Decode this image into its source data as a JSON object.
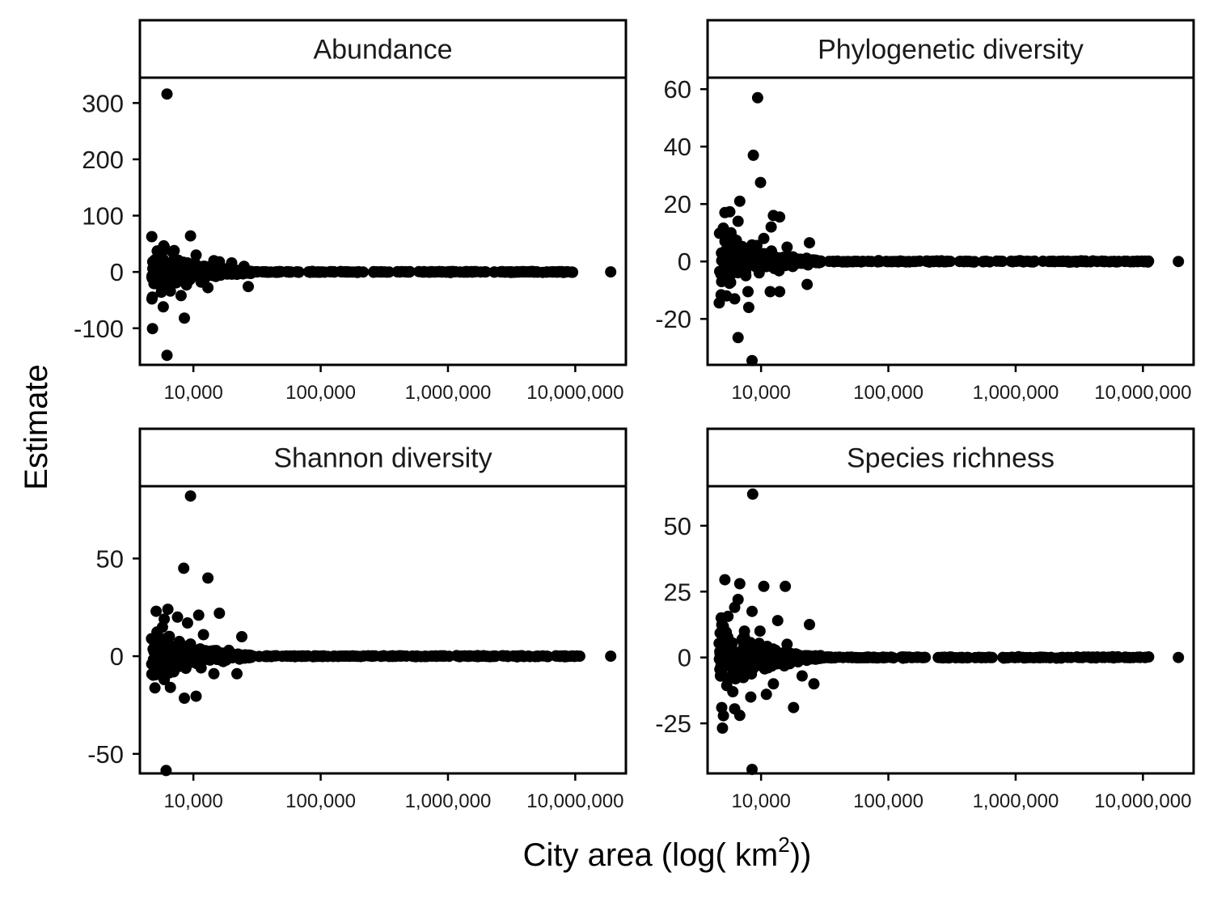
{
  "figure": {
    "xlabel": "City area (log( km",
    "xlabel_sup": "2",
    "xlabel_end": "))",
    "ylabel": "Estimate"
  },
  "chart_data": [
    {
      "type": "scatter",
      "title": "Abundance",
      "x_scale": "log10",
      "xlim": [
        3800,
        25000000
      ],
      "ylim": [
        -165,
        345
      ],
      "xticks": [
        10000,
        100000,
        1000000,
        10000000
      ],
      "xtick_labels": [
        "10,000",
        "100,000",
        "1,000,000",
        "10,000,000"
      ],
      "yticks": [
        -100,
        0,
        100,
        200,
        300
      ],
      "ytick_labels": [
        "-100",
        "0",
        "100",
        "200",
        "300"
      ],
      "grid": false,
      "outliers": [
        [
          6200,
          316
        ],
        [
          6200,
          -148
        ],
        [
          5800,
          -62
        ],
        [
          8500,
          -82
        ],
        [
          9500,
          64
        ],
        [
          5900,
          44
        ],
        [
          6800,
          36
        ],
        [
          5300,
          30
        ],
        [
          10500,
          30
        ],
        [
          8000,
          -42
        ],
        [
          5600,
          -36
        ],
        [
          6600,
          -34
        ],
        [
          13000,
          -28
        ],
        [
          27000,
          -26
        ],
        [
          5000,
          -12
        ],
        [
          7400,
          12
        ],
        [
          9000,
          16
        ],
        [
          11500,
          -18
        ],
        [
          14500,
          20
        ],
        [
          16000,
          18
        ],
        [
          20000,
          16
        ],
        [
          25000,
          10
        ],
        [
          12000,
          10
        ],
        [
          4800,
          6
        ],
        [
          15000,
          -8
        ]
      ],
      "noise_amplitude": 30
    },
    {
      "type": "scatter",
      "title": "Phylogenetic diversity",
      "x_scale": "log10",
      "xlim": [
        3800,
        25000000
      ],
      "ylim": [
        -36,
        64
      ],
      "xticks": [
        10000,
        100000,
        1000000,
        10000000
      ],
      "xtick_labels": [
        "10,000",
        "100,000",
        "1,000,000",
        "10,000,000"
      ],
      "yticks": [
        -20,
        0,
        20,
        40,
        60
      ],
      "ytick_labels": [
        "-20",
        "0",
        "20",
        "40",
        "60"
      ],
      "grid": false,
      "outliers": [
        [
          9400,
          57
        ],
        [
          8700,
          37
        ],
        [
          9900,
          27.5
        ],
        [
          6800,
          21
        ],
        [
          5200,
          17
        ],
        [
          12500,
          16
        ],
        [
          14000,
          15.5
        ],
        [
          6600,
          14
        ],
        [
          5800,
          10
        ],
        [
          12000,
          12
        ],
        [
          8500,
          -34.5
        ],
        [
          6600,
          -26.5
        ],
        [
          8000,
          -16
        ],
        [
          6200,
          -13
        ],
        [
          4900,
          -7
        ],
        [
          7900,
          -10.5
        ],
        [
          11800,
          -10.5
        ],
        [
          14000,
          -10.5
        ],
        [
          24000,
          6.5
        ],
        [
          23000,
          -8
        ],
        [
          5100,
          -3.5
        ],
        [
          5600,
          3.5
        ],
        [
          10500,
          8
        ],
        [
          16000,
          5
        ],
        [
          7300,
          2
        ]
      ],
      "noise_amplitude": 8
    },
    {
      "type": "scatter",
      "title": "Shannon diversity",
      "x_scale": "log10",
      "xlim": [
        3800,
        25000000
      ],
      "ylim": [
        -60,
        87
      ],
      "xticks": [
        10000,
        100000,
        1000000,
        10000000
      ],
      "xtick_labels": [
        "10,000",
        "100,000",
        "1,000,000",
        "10,000,000"
      ],
      "yticks": [
        -50,
        0,
        50
      ],
      "ytick_labels": [
        "-50",
        "0",
        "50"
      ],
      "grid": false,
      "outliers": [
        [
          9500,
          82
        ],
        [
          8400,
          45
        ],
        [
          13000,
          40
        ],
        [
          5100,
          23
        ],
        [
          6300,
          24
        ],
        [
          16000,
          22
        ],
        [
          11000,
          21
        ],
        [
          7500,
          20
        ],
        [
          5900,
          19
        ],
        [
          9000,
          17
        ],
        [
          6100,
          -58.5
        ],
        [
          8500,
          -21.5
        ],
        [
          10500,
          -20.5
        ],
        [
          6600,
          -16
        ],
        [
          5900,
          -12
        ],
        [
          4900,
          -4
        ],
        [
          24000,
          10
        ],
        [
          12000,
          11
        ],
        [
          7000,
          -8
        ],
        [
          14500,
          -9
        ],
        [
          5200,
          5
        ],
        [
          19000,
          3
        ],
        [
          8000,
          6
        ],
        [
          11500,
          -6
        ],
        [
          22000,
          -9
        ]
      ],
      "noise_amplitude": 10
    },
    {
      "type": "scatter",
      "title": "Species richness",
      "x_scale": "log10",
      "xlim": [
        3800,
        25000000
      ],
      "ylim": [
        -44,
        65
      ],
      "xticks": [
        10000,
        100000,
        1000000,
        10000000
      ],
      "xtick_labels": [
        "10,000",
        "100,000",
        "1,000,000",
        "10,000,000"
      ],
      "yticks": [
        -25,
        0,
        25,
        50
      ],
      "ytick_labels": [
        "-25",
        "0",
        "25",
        "50"
      ],
      "grid": false,
      "outliers": [
        [
          8600,
          62
        ],
        [
          5200,
          29.5
        ],
        [
          6800,
          28
        ],
        [
          10500,
          27
        ],
        [
          15500,
          27
        ],
        [
          6600,
          22
        ],
        [
          6200,
          19
        ],
        [
          8500,
          17.5
        ],
        [
          13500,
          14
        ],
        [
          24000,
          12.5
        ],
        [
          8500,
          -42.5
        ],
        [
          6800,
          -22
        ],
        [
          6200,
          -19.5
        ],
        [
          18000,
          -19
        ],
        [
          8300,
          -15
        ],
        [
          6000,
          -13
        ],
        [
          11000,
          -14
        ],
        [
          4900,
          -5
        ],
        [
          5300,
          5
        ],
        [
          7400,
          10
        ],
        [
          9800,
          10
        ],
        [
          12500,
          -10
        ],
        [
          16000,
          5
        ],
        [
          21000,
          -7
        ],
        [
          26000,
          -10
        ]
      ],
      "noise_amplitude": 9
    }
  ]
}
